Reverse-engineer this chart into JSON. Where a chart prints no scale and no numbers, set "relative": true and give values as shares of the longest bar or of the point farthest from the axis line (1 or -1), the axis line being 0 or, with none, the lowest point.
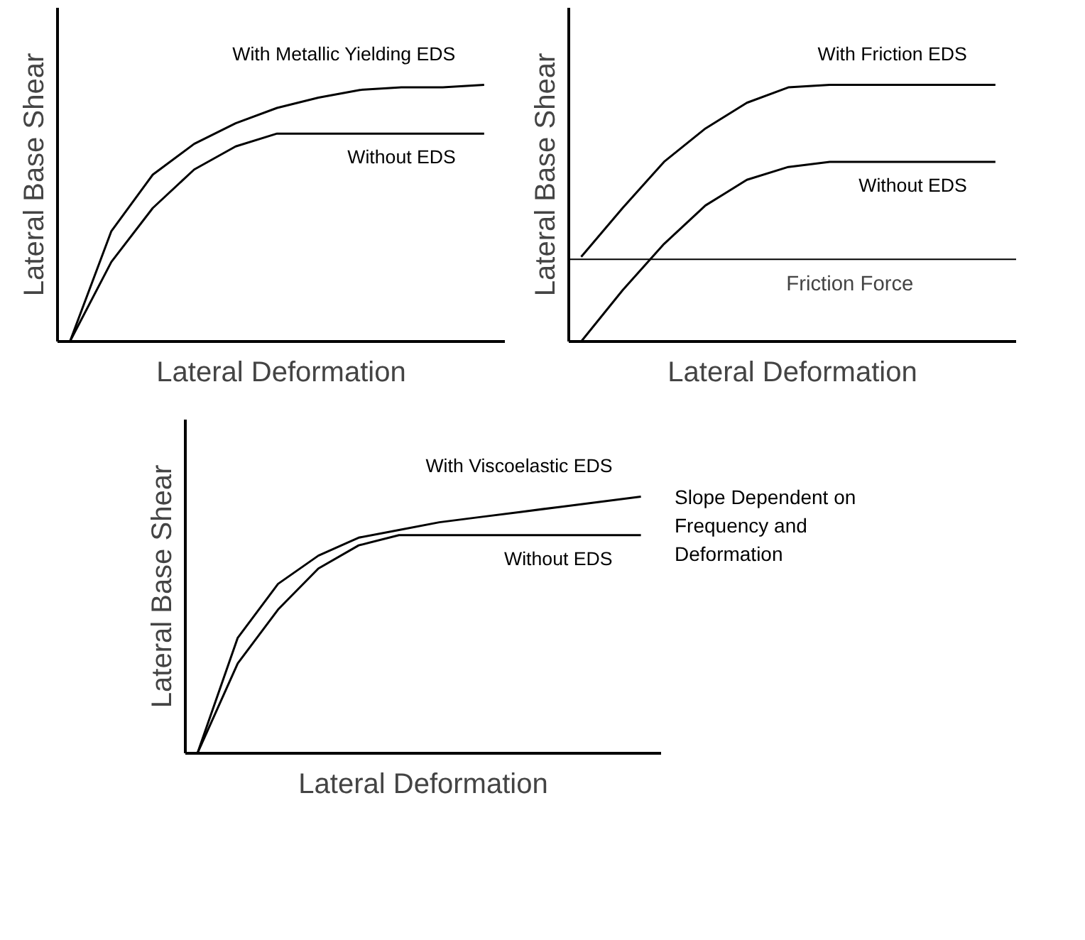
{
  "chart_data": [
    {
      "type": "line",
      "relative": true,
      "xlabel": "Lateral Deformation",
      "ylabel": "Lateral Base Shear",
      "categories": [
        null,
        null,
        null,
        null,
        null,
        null,
        null,
        null,
        null,
        null,
        null
      ],
      "series": [
        {
          "name": "With Metallic Yielding EDS",
          "color": "#000000",
          "values": [
            0,
            0.43,
            0.65,
            0.77,
            0.85,
            0.91,
            0.95,
            0.98,
            0.99,
            0.99,
            1
          ]
        },
        {
          "name": "Without EDS",
          "color": "#000000",
          "values": [
            0,
            0.31,
            0.52,
            0.67,
            0.76,
            0.81,
            0.81,
            0.81,
            0.81,
            0.81,
            0.81
          ]
        }
      ]
    },
    {
      "type": "line",
      "relative": true,
      "xlabel": "Lateral Deformation",
      "ylabel": "Lateral Base Shear",
      "categories": [
        null,
        null,
        null,
        null,
        null,
        null,
        null,
        null,
        null,
        null,
        null
      ],
      "series": [
        {
          "name": "With Friction EDS",
          "color": "#000000",
          "values": [
            0.33,
            0.52,
            0.7,
            0.83,
            0.93,
            0.99,
            1,
            1,
            1,
            1,
            1
          ]
        },
        {
          "name": "Without EDS",
          "color": "#000000",
          "values": [
            0,
            0.2,
            0.38,
            0.53,
            0.63,
            0.68,
            0.7,
            0.7,
            0.7,
            0.7,
            0.7
          ]
        }
      ],
      "ref_lines": [
        {
          "axis": "y",
          "value": 0.32,
          "label": "Friction Force"
        }
      ]
    },
    {
      "type": "line",
      "relative": true,
      "xlabel": "Lateral Deformation",
      "ylabel": "Lateral Base Shear",
      "categories": [
        null,
        null,
        null,
        null,
        null,
        null,
        null,
        null,
        null,
        null,
        null,
        null
      ],
      "series": [
        {
          "name": "With Viscoelastic EDS",
          "color": "#000000",
          "values": [
            0,
            0.45,
            0.66,
            0.77,
            0.84,
            0.87,
            0.9,
            0.92,
            0.94,
            0.96,
            0.98,
            1
          ]
        },
        {
          "name": "Without EDS",
          "color": "#000000",
          "values": [
            0,
            0.35,
            0.56,
            0.72,
            0.81,
            0.85,
            0.85,
            0.85,
            0.85,
            0.85,
            0.85,
            0.85
          ]
        }
      ],
      "annotations": [
        "Slope Dependent on Frequency and Deformation"
      ]
    }
  ]
}
